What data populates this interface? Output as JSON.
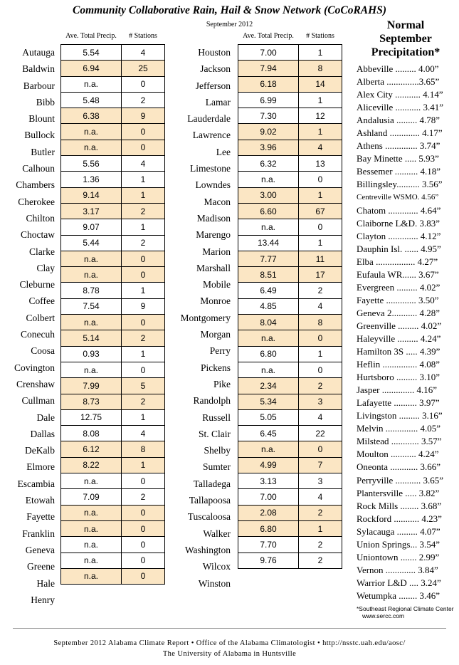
{
  "title": "Community Collaborative Rain, Hail & Snow Network (CoCoRAHS)",
  "month": "September 2012",
  "col_precip": "Ave. Total Precip.",
  "col_stations": "# Stations",
  "left_table": [
    {
      "county": "Autauga",
      "precip": "5.54",
      "stations": "4",
      "hl": false
    },
    {
      "county": "Baldwin",
      "precip": "6.94",
      "stations": "25",
      "hl": true
    },
    {
      "county": "Barbour",
      "precip": "n.a.",
      "stations": "0",
      "hl": false
    },
    {
      "county": "Bibb",
      "precip": "5.48",
      "stations": "2",
      "hl": false
    },
    {
      "county": "Blount",
      "precip": "6.38",
      "stations": "9",
      "hl": true
    },
    {
      "county": "Bullock",
      "precip": "n.a.",
      "stations": "0",
      "hl": true
    },
    {
      "county": "Butler",
      "precip": "n.a.",
      "stations": "0",
      "hl": true
    },
    {
      "county": "Calhoun",
      "precip": "5.56",
      "stations": "4",
      "hl": false
    },
    {
      "county": "Chambers",
      "precip": "1.36",
      "stations": "1",
      "hl": false
    },
    {
      "county": "Cherokee",
      "precip": "9.14",
      "stations": "1",
      "hl": true
    },
    {
      "county": "Chilton",
      "precip": "3.17",
      "stations": "2",
      "hl": true
    },
    {
      "county": "Choctaw",
      "precip": "9.07",
      "stations": "1",
      "hl": false
    },
    {
      "county": "Clarke",
      "precip": "5.44",
      "stations": "2",
      "hl": false
    },
    {
      "county": "Clay",
      "precip": "n.a.",
      "stations": "0",
      "hl": true
    },
    {
      "county": "Cleburne",
      "precip": "n.a.",
      "stations": "0",
      "hl": true
    },
    {
      "county": "Coffee",
      "precip": "8.78",
      "stations": "1",
      "hl": false
    },
    {
      "county": "Colbert",
      "precip": "7.54",
      "stations": "9",
      "hl": false
    },
    {
      "county": "Conecuh",
      "precip": "n.a.",
      "stations": "0",
      "hl": true
    },
    {
      "county": "Coosa",
      "precip": "5.14",
      "stations": "2",
      "hl": true
    },
    {
      "county": "Covington",
      "precip": "0.93",
      "stations": "1",
      "hl": false
    },
    {
      "county": "Crenshaw",
      "precip": "n.a.",
      "stations": "0",
      "hl": false
    },
    {
      "county": "Cullman",
      "precip": "7.99",
      "stations": "5",
      "hl": true
    },
    {
      "county": "Dale",
      "precip": "8.73",
      "stations": "2",
      "hl": true
    },
    {
      "county": "Dallas",
      "precip": "12.75",
      "stations": "1",
      "hl": false
    },
    {
      "county": "DeKalb",
      "precip": "8.08",
      "stations": "4",
      "hl": false
    },
    {
      "county": "Elmore",
      "precip": "6.12",
      "stations": "8",
      "hl": true
    },
    {
      "county": "Escambia",
      "precip": "8.22",
      "stations": "1",
      "hl": true
    },
    {
      "county": "Etowah",
      "precip": "n.a.",
      "stations": "0",
      "hl": false
    },
    {
      "county": "Fayette",
      "precip": "7.09",
      "stations": "2",
      "hl": false
    },
    {
      "county": "Franklin",
      "precip": "n.a.",
      "stations": "0",
      "hl": true
    },
    {
      "county": "Geneva",
      "precip": "n.a.",
      "stations": "0",
      "hl": true
    },
    {
      "county": "Greene",
      "precip": "n.a.",
      "stations": "0",
      "hl": false
    },
    {
      "county": "Hale",
      "precip": "n.a.",
      "stations": "0",
      "hl": false
    },
    {
      "county": "Henry",
      "precip": "n.a.",
      "stations": "0",
      "hl": true
    }
  ],
  "right_table": [
    {
      "county": "Houston",
      "precip": "7.00",
      "stations": "1",
      "hl": false
    },
    {
      "county": "Jackson",
      "precip": "7.94",
      "stations": "8",
      "hl": true
    },
    {
      "county": "Jefferson",
      "precip": "6.18",
      "stations": "14",
      "hl": true
    },
    {
      "county": "Lamar",
      "precip": "6.99",
      "stations": "1",
      "hl": false
    },
    {
      "county": "Lauderdale",
      "precip": "7.30",
      "stations": "12",
      "hl": false
    },
    {
      "county": "Lawrence",
      "precip": "9.02",
      "stations": "1",
      "hl": true
    },
    {
      "county": "Lee",
      "precip": "3.96",
      "stations": "4",
      "hl": true
    },
    {
      "county": "Limestone",
      "precip": "6.32",
      "stations": "13",
      "hl": false
    },
    {
      "county": "Lowndes",
      "precip": "n.a.",
      "stations": "0",
      "hl": false
    },
    {
      "county": "Macon",
      "precip": "3.00",
      "stations": "1",
      "hl": true
    },
    {
      "county": "Madison",
      "precip": "6.60",
      "stations": "67",
      "hl": true
    },
    {
      "county": "Marengo",
      "precip": "n.a.",
      "stations": "0",
      "hl": false
    },
    {
      "county": "Marion",
      "precip": "13.44",
      "stations": "1",
      "hl": false
    },
    {
      "county": "Marshall",
      "precip": "7.77",
      "stations": "11",
      "hl": true
    },
    {
      "county": "Mobile",
      "precip": "8.51",
      "stations": "17",
      "hl": true
    },
    {
      "county": "Monroe",
      "precip": "6.49",
      "stations": "2",
      "hl": false
    },
    {
      "county": "Montgomery",
      "precip": "4.85",
      "stations": "4",
      "hl": false
    },
    {
      "county": "Morgan",
      "precip": "8.04",
      "stations": "8",
      "hl": true
    },
    {
      "county": "Perry",
      "precip": "n.a.",
      "stations": "0",
      "hl": true
    },
    {
      "county": "Pickens",
      "precip": "6.80",
      "stations": "1",
      "hl": false
    },
    {
      "county": "Pike",
      "precip": "n.a.",
      "stations": "0",
      "hl": false
    },
    {
      "county": "Randolph",
      "precip": "2.34",
      "stations": "2",
      "hl": true
    },
    {
      "county": "Russell",
      "precip": "5.34",
      "stations": "3",
      "hl": true
    },
    {
      "county": "St. Clair",
      "precip": "5.05",
      "stations": "4",
      "hl": false
    },
    {
      "county": "Shelby",
      "precip": "6.45",
      "stations": "22",
      "hl": false
    },
    {
      "county": "Sumter",
      "precip": "n.a.",
      "stations": "0",
      "hl": true
    },
    {
      "county": "Talladega",
      "precip": "4.99",
      "stations": "7",
      "hl": true
    },
    {
      "county": "Tallapoosa",
      "precip": "3.13",
      "stations": "3",
      "hl": false
    },
    {
      "county": "Tuscaloosa",
      "precip": "7.00",
      "stations": "4",
      "hl": false
    },
    {
      "county": "Walker",
      "precip": "2.08",
      "stations": "2",
      "hl": true
    },
    {
      "county": "Washington",
      "precip": "6.80",
      "stations": "1",
      "hl": true
    },
    {
      "county": "Wilcox",
      "precip": "7.70",
      "stations": "2",
      "hl": false
    },
    {
      "county": "Winston",
      "precip": "9.76",
      "stations": "2",
      "hl": false
    }
  ],
  "normal_title_1": "Normal",
  "normal_title_2": "September",
  "normal_title_3": "Precipitation*",
  "normal": [
    "Abbeville ......... 4.00”",
    "Alberta ..............3.65”",
    "Alex City ........... 4.14”",
    "Aliceville ........... 3.41”",
    "Andalusia ......... 4.78”",
    "Ashland ............. 4.17”",
    "Athens .............. 3.74”",
    "Bay Minette ..... 5.93”",
    "Bessemer .......... 4.18”",
    "Billingsley.......... 3.56”",
    "Centreville WSMO. 4.56”",
    "Chatom ............. 4.64”",
    "Claiborne L&D. 3.83”",
    "Clayton ............. 4.12”",
    "Dauphin Isl. ...... 4.95”",
    "Elba ................. 4.27”",
    "Eufaula WR...... 3.67”",
    "Evergreen ......... 4.02”",
    "Fayette ............. 3.50”",
    "Geneva 2........... 4.28”",
    "Greenville ......... 4.02”",
    "Haleyville ......... 4.24”",
    "Hamilton 3S ..... 4.39”",
    "Heflin ............... 4.08”",
    "Hurtsboro ......... 3.10”",
    "Jasper .............. 4.16”",
    "Lafayette .......... 3.97”",
    "Livingston ......... 3.16”",
    "Melvin .............. 4.05”",
    "Milstead ............ 3.57”",
    "Moulton ........... 4.24”",
    "Oneonta ............ 3.66”",
    "Perryville ........... 3.65”",
    "Plantersville ..... 3.82”",
    "Rock Mills ........ 3.68”",
    "Rockford ........... 4.23”",
    "Sylacauga ......... 4.07”",
    "Union Springs... 3.54”",
    "Uniontown ....... 2.99”",
    "Vernon ............. 3.84”",
    "Warrior L&D .... 3.24”",
    "Wetumpka ........ 3.46”"
  ],
  "note_line1": "*Southeast Regional Climate Center",
  "note_line2": "www.sercc.com",
  "footer_line1": "September 2012 Alabama Climate Report  •  Office of the Alabama Climatologist  •  http://nsstc.uah.edu/aosc/",
  "footer_line2": "The University of Alabama in Huntsville"
}
